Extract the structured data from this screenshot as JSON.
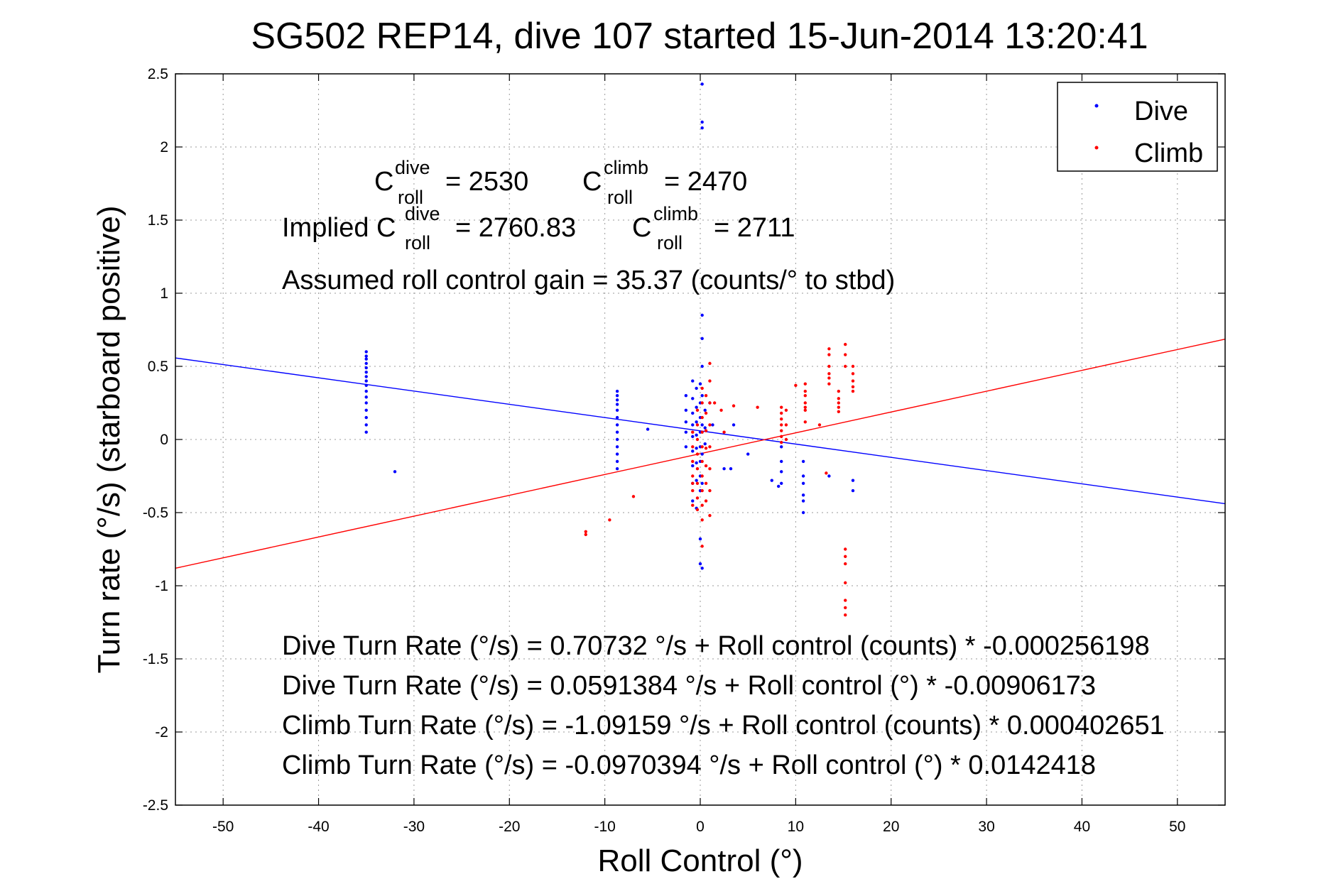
{
  "chart_data": {
    "type": "scatter",
    "title": "SG502 REP14, dive 107 started 15-Jun-2014 13:20:41",
    "xlabel": "Roll Control (°)",
    "ylabel": "Turn rate (°/s)  (starboard positive)",
    "xlim": [
      -55,
      55
    ],
    "ylim": [
      -2.5,
      2.5
    ],
    "xticks": [
      -50,
      -40,
      -30,
      -20,
      -10,
      0,
      10,
      20,
      30,
      40,
      50
    ],
    "yticks": [
      -2.5,
      -2,
      -1.5,
      -1,
      -0.5,
      0,
      0.5,
      1,
      1.5,
      2,
      2.5
    ],
    "xtick_labels": [
      "-50",
      "-40",
      "-30",
      "-20",
      "-10",
      "0",
      "10",
      "20",
      "30",
      "40",
      "50"
    ],
    "ytick_labels": [
      "-2.5",
      "-2",
      "-1.5",
      "-1",
      "-0.5",
      "0",
      "0.5",
      "1",
      "1.5",
      "2",
      "2.5"
    ],
    "grid": true,
    "legend_position": "top-right",
    "series": [
      {
        "name": "Dive",
        "color": "#0000ff",
        "points": [
          [
            -35,
            0.6
          ],
          [
            -35,
            0.57
          ],
          [
            -35,
            0.55
          ],
          [
            -35,
            0.52
          ],
          [
            -35,
            0.49
          ],
          [
            -35,
            0.46
          ],
          [
            -35,
            0.43
          ],
          [
            -35,
            0.4
          ],
          [
            -35,
            0.37
          ],
          [
            -35,
            0.33
          ],
          [
            -35,
            0.29
          ],
          [
            -35,
            0.25
          ],
          [
            -35,
            0.2
          ],
          [
            -35,
            0.15
          ],
          [
            -35,
            0.1
          ],
          [
            -35,
            0.05
          ],
          [
            -32,
            -0.22
          ],
          [
            -8.7,
            0.33
          ],
          [
            -8.7,
            0.3
          ],
          [
            -8.7,
            0.27
          ],
          [
            -8.7,
            0.24
          ],
          [
            -8.7,
            0.2
          ],
          [
            -8.7,
            0.15
          ],
          [
            -8.7,
            0.1
          ],
          [
            -8.7,
            0.05
          ],
          [
            -8.7,
            0.0
          ],
          [
            -8.7,
            -0.05
          ],
          [
            -8.7,
            -0.1
          ],
          [
            -8.7,
            -0.15
          ],
          [
            -8.7,
            -0.2
          ],
          [
            -5.5,
            0.07
          ],
          [
            -1.5,
            0.3
          ],
          [
            -1.5,
            0.2
          ],
          [
            -1.5,
            0.12
          ],
          [
            -1.5,
            0.05
          ],
          [
            -1.5,
            -0.05
          ],
          [
            -0.8,
            0.4
          ],
          [
            -0.8,
            0.28
          ],
          [
            -0.8,
            0.18
          ],
          [
            -0.8,
            0.1
          ],
          [
            -0.8,
            0.02
          ],
          [
            -0.8,
            -0.08
          ],
          [
            -0.8,
            -0.18
          ],
          [
            -0.8,
            -0.3
          ],
          [
            -0.8,
            -0.42
          ],
          [
            -0.4,
            0.35
          ],
          [
            -0.4,
            0.22
          ],
          [
            -0.4,
            0.12
          ],
          [
            -0.4,
            0.03
          ],
          [
            -0.4,
            -0.06
          ],
          [
            -0.4,
            -0.16
          ],
          [
            -0.4,
            -0.28
          ],
          [
            -0.4,
            -0.47
          ],
          [
            0,
            0.38
          ],
          [
            0,
            0.25
          ],
          [
            0,
            0.15
          ],
          [
            0,
            0.05
          ],
          [
            0,
            -0.05
          ],
          [
            0,
            -0.15
          ],
          [
            0,
            -0.25
          ],
          [
            0,
            -0.35
          ],
          [
            0,
            -0.68
          ],
          [
            0,
            -0.85
          ],
          [
            0.2,
            2.43
          ],
          [
            0.2,
            2.17
          ],
          [
            0.2,
            2.13
          ],
          [
            0.2,
            0.85
          ],
          [
            0.2,
            0.69
          ],
          [
            0.2,
            0.5
          ],
          [
            0.2,
            0.3
          ],
          [
            0.2,
            0.1
          ],
          [
            0.2,
            -0.1
          ],
          [
            0.2,
            -0.3
          ],
          [
            0.2,
            -0.88
          ],
          [
            0.5,
            0.2
          ],
          [
            0.5,
            0.08
          ],
          [
            0.5,
            -0.03
          ],
          [
            1.0,
            0.25
          ],
          [
            1.3,
            0.1
          ],
          [
            2.5,
            -0.2
          ],
          [
            3.2,
            -0.2
          ],
          [
            3.5,
            0.1
          ],
          [
            5,
            -0.1
          ],
          [
            7.5,
            -0.28
          ],
          [
            8.2,
            -0.32
          ],
          [
            8.5,
            -0.05
          ],
          [
            8.5,
            -0.15
          ],
          [
            8.5,
            -0.22
          ],
          [
            8.5,
            -0.3
          ],
          [
            10.8,
            -0.15
          ],
          [
            10.8,
            -0.25
          ],
          [
            10.8,
            -0.3
          ],
          [
            10.8,
            -0.38
          ],
          [
            10.8,
            -0.42
          ],
          [
            10.8,
            -0.5
          ],
          [
            13.5,
            -0.25
          ],
          [
            16,
            -0.28
          ],
          [
            16,
            -0.35
          ]
        ]
      },
      {
        "name": "Climb",
        "color": "#ff0000",
        "points": [
          [
            -12,
            -0.63
          ],
          [
            -12,
            -0.65
          ],
          [
            -9.5,
            -0.55
          ],
          [
            -7,
            -0.39
          ],
          [
            -0.8,
            0.05
          ],
          [
            -0.8,
            -0.05
          ],
          [
            -0.8,
            -0.15
          ],
          [
            -0.8,
            -0.25
          ],
          [
            -0.8,
            -0.35
          ],
          [
            -0.8,
            -0.45
          ],
          [
            -0.8,
            -0.3
          ],
          [
            -0.3,
            0.2
          ],
          [
            -0.3,
            0.1
          ],
          [
            -0.3,
            0.0
          ],
          [
            -0.3,
            -0.1
          ],
          [
            -0.3,
            -0.2
          ],
          [
            -0.3,
            -0.3
          ],
          [
            -0.3,
            -0.4
          ],
          [
            -0.3,
            -0.48
          ],
          [
            0.2,
            0.35
          ],
          [
            0.2,
            0.25
          ],
          [
            0.2,
            0.15
          ],
          [
            0.2,
            0.05
          ],
          [
            0.2,
            -0.05
          ],
          [
            0.2,
            -0.15
          ],
          [
            0.2,
            -0.25
          ],
          [
            0.2,
            -0.35
          ],
          [
            0.2,
            -0.45
          ],
          [
            0.2,
            -0.55
          ],
          [
            0.2,
            -0.73
          ],
          [
            0.6,
            0.3
          ],
          [
            0.6,
            0.18
          ],
          [
            0.6,
            0.06
          ],
          [
            0.6,
            -0.06
          ],
          [
            0.6,
            -0.18
          ],
          [
            0.6,
            -0.3
          ],
          [
            0.6,
            -0.42
          ],
          [
            1.0,
            0.52
          ],
          [
            1.0,
            0.4
          ],
          [
            1.0,
            0.25
          ],
          [
            1.0,
            0.1
          ],
          [
            1.0,
            -0.05
          ],
          [
            1.0,
            -0.2
          ],
          [
            1.0,
            -0.35
          ],
          [
            1.0,
            -0.52
          ],
          [
            1.5,
            0.25
          ],
          [
            2.2,
            0.2
          ],
          [
            2.5,
            0.05
          ],
          [
            3.5,
            0.23
          ],
          [
            6.0,
            0.22
          ],
          [
            8.5,
            0.22
          ],
          [
            8.5,
            0.18
          ],
          [
            8.5,
            0.14
          ],
          [
            8.5,
            0.1
          ],
          [
            8.5,
            0.06
          ],
          [
            8.5,
            0.02
          ],
          [
            8.5,
            -0.02
          ],
          [
            9.0,
            0.2
          ],
          [
            9.0,
            0.1
          ],
          [
            9.0,
            0.0
          ],
          [
            10,
            0.37
          ],
          [
            11,
            0.38
          ],
          [
            11,
            0.33
          ],
          [
            11,
            0.3
          ],
          [
            11,
            0.25
          ],
          [
            11,
            0.22
          ],
          [
            11,
            0.2
          ],
          [
            11,
            0.12
          ],
          [
            12.5,
            0.1
          ],
          [
            13.2,
            -0.23
          ],
          [
            13.5,
            0.62
          ],
          [
            13.5,
            0.58
          ],
          [
            13.5,
            0.5
          ],
          [
            13.5,
            0.45
          ],
          [
            13.5,
            0.42
          ],
          [
            13.5,
            0.38
          ],
          [
            14.5,
            0.33
          ],
          [
            14.5,
            0.28
          ],
          [
            14.5,
            0.25
          ],
          [
            14.5,
            0.22
          ],
          [
            14.5,
            0.19
          ],
          [
            15.2,
            0.65
          ],
          [
            15.2,
            0.58
          ],
          [
            15.2,
            0.5
          ],
          [
            15.2,
            -0.75
          ],
          [
            15.2,
            -0.8
          ],
          [
            15.2,
            -0.85
          ],
          [
            15.2,
            -0.98
          ],
          [
            15.2,
            -1.1
          ],
          [
            15.2,
            -1.15
          ],
          [
            15.2,
            -1.2
          ],
          [
            16,
            0.5
          ],
          [
            16,
            0.45
          ],
          [
            16,
            0.4
          ],
          [
            16,
            0.36
          ],
          [
            16,
            0.33
          ]
        ]
      }
    ],
    "fit_lines": [
      {
        "name": "Dive fit",
        "color": "#0000ff",
        "intercept": 0.0591384,
        "slope": -0.00906173
      },
      {
        "name": "Climb fit",
        "color": "#ff0000",
        "intercept": -0.0970394,
        "slope": 0.0142418
      }
    ],
    "annotations": {
      "c_dive_lhs": "C",
      "c_sup_dive": "dive",
      "c_sub_roll": "roll",
      "c_dive_val": "= 2530",
      "c_sup_climb": "climb",
      "c_climb_val": "= 2470",
      "implied_prefix": "Implied C",
      "implied_dive_val": "= 2760.83",
      "implied_climb_val": "= 2711",
      "gain": "Assumed roll control gain = 35.37 (counts/° to stbd)",
      "eq1": "Dive Turn Rate (°/s) = 0.70732 °/s + Roll control (counts) * -0.000256198",
      "eq2": "Dive Turn Rate (°/s) = 0.0591384 °/s + Roll control (°) * -0.00906173",
      "eq3": "Climb Turn Rate (°/s) = -1.09159 °/s + Roll control (counts) * 0.000402651",
      "eq4": "Climb Turn Rate (°/s) = -0.0970394 °/s + Roll control (°) * 0.0142418"
    }
  }
}
